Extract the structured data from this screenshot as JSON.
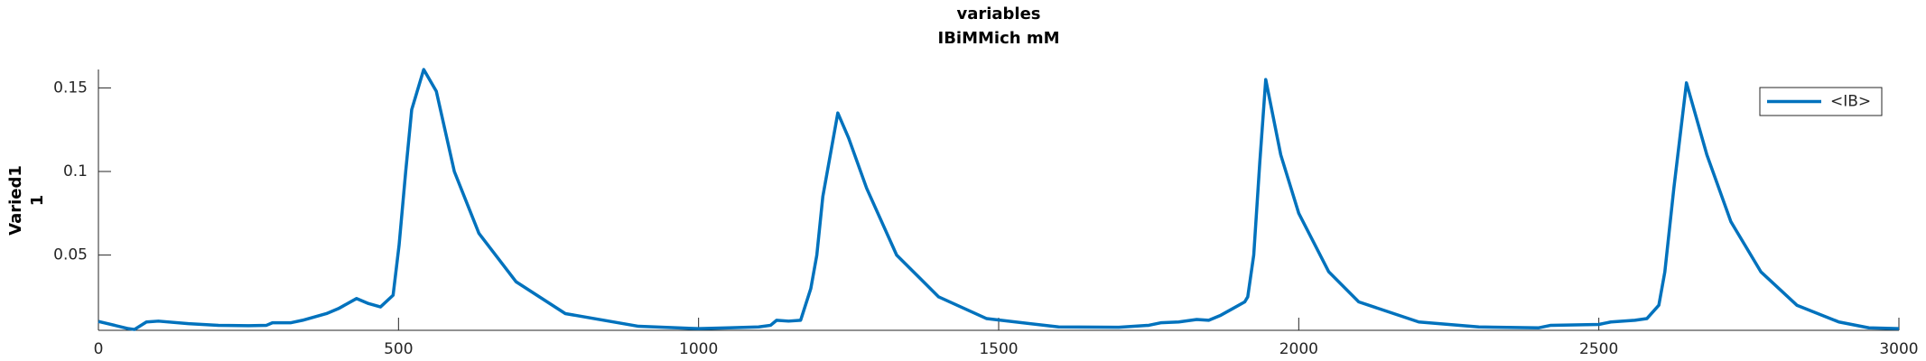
{
  "chart_data": {
    "type": "line",
    "title": [
      "variables",
      "IBiMMich mM"
    ],
    "ylabel": [
      "Varied1",
      "1"
    ],
    "x": [
      0,
      50,
      60,
      80,
      100,
      150,
      200,
      250,
      280,
      290,
      320,
      340,
      360,
      380,
      400,
      430,
      450,
      470,
      491,
      501,
      512,
      522,
      542,
      563,
      593,
      634,
      696,
      778,
      900,
      1000,
      1050,
      1100,
      1120,
      1130,
      1150,
      1170,
      1187,
      1197,
      1207,
      1232,
      1250,
      1280,
      1330,
      1400,
      1480,
      1600,
      1700,
      1750,
      1770,
      1800,
      1830,
      1850,
      1870,
      1890,
      1910,
      1915,
      1925,
      1935,
      1945,
      1970,
      2000,
      2050,
      2100,
      2200,
      2300,
      2400,
      2420,
      2500,
      2520,
      2560,
      2580,
      2600,
      2610,
      2625,
      2646,
      2680,
      2720,
      2770,
      2830,
      2900,
      2950,
      3000
    ],
    "series": [
      {
        "name": "<IB>",
        "color": "#0072bd",
        "values": [
          0.0103,
          0.006,
          0.0055,
          0.01,
          0.0105,
          0.009,
          0.008,
          0.0078,
          0.008,
          0.0095,
          0.0095,
          0.011,
          0.013,
          0.015,
          0.018,
          0.024,
          0.021,
          0.019,
          0.026,
          0.056,
          0.1,
          0.137,
          0.161,
          0.148,
          0.1,
          0.063,
          0.034,
          0.015,
          0.0074,
          0.006,
          0.0065,
          0.007,
          0.008,
          0.011,
          0.0105,
          0.011,
          0.03,
          0.05,
          0.085,
          0.135,
          0.12,
          0.09,
          0.05,
          0.025,
          0.012,
          0.007,
          0.0068,
          0.008,
          0.0095,
          0.01,
          0.0115,
          0.011,
          0.014,
          0.018,
          0.022,
          0.025,
          0.05,
          0.105,
          0.155,
          0.11,
          0.075,
          0.04,
          0.022,
          0.01,
          0.007,
          0.0065,
          0.008,
          0.0085,
          0.01,
          0.011,
          0.012,
          0.02,
          0.04,
          0.09,
          0.153,
          0.11,
          0.07,
          0.04,
          0.02,
          0.01,
          0.0065,
          0.006
        ]
      }
    ],
    "xlim": [
      0,
      3000
    ],
    "xticks": [
      0,
      500,
      1000,
      1500,
      2000,
      2500,
      3000
    ],
    "ylim": [
      0.005,
      0.161
    ],
    "yticks": [
      0.05,
      0.1,
      0.15
    ],
    "legend": "upper right"
  }
}
